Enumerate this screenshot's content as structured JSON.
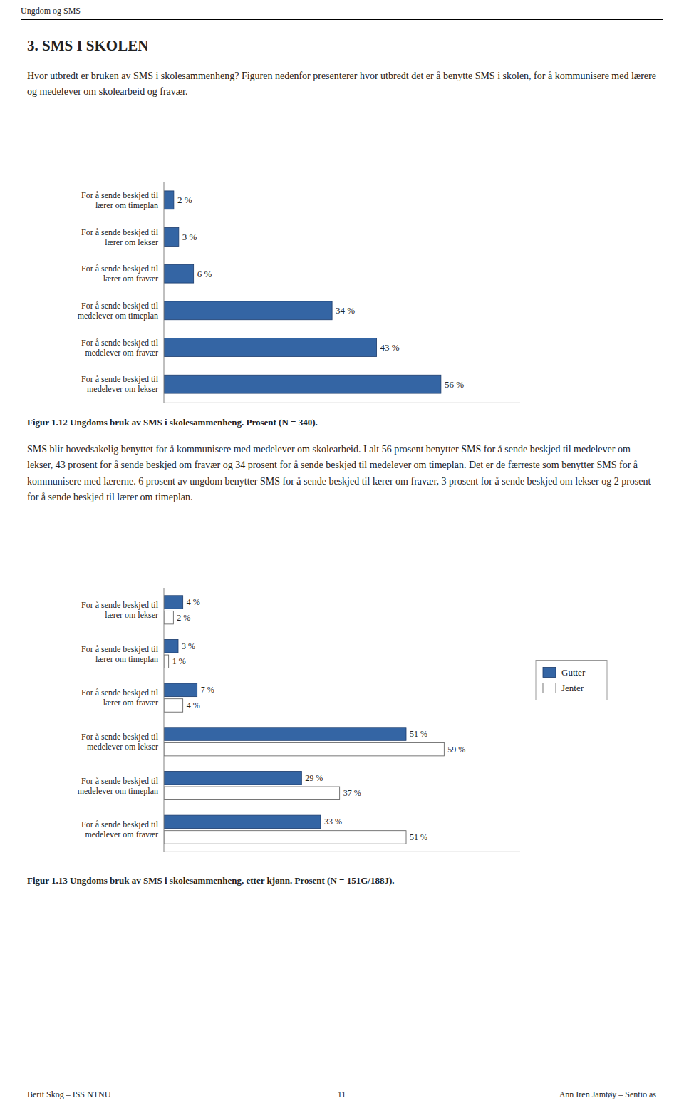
{
  "page_title": "Ungdom og SMS",
  "section_title": "3. SMS I SKOLEN",
  "section_text1": "Hvor utbredt er bruken av SMS i skolesammenheng? Figuren nedenfor presenterer hvor utbredt det er å benytte SMS i skolen, for å kommunisere med lærere og medelever om skolearbeid og fravær.",
  "section_text2": "SMS blir hovedsakelig benyttet for å kommunisere med medelever om skolearbeid. I alt 56 prosent benytter SMS for å sende beskjed til medelever om lekser, 43 prosent for å sende beskjed om fravær og 34 prosent for å sende beskjed til medelever om timeplan. Det er de færreste som benytter SMS for å kommunisere med lærerne. 6 prosent av ungdom benytter SMS for å sende beskjed til lærer om fravær, 3 prosent for å sende beskjed om lekser og 2 prosent for å sende beskjed til lærer om timeplan.",
  "footer_left": "Berit Skog – ISS NTNU",
  "footer_center": "11",
  "footer_right": "Ann Iren Jamtøy – Sentio as",
  "chart_data": [
    {
      "type": "bar",
      "orientation": "horizontal",
      "title": "Figur 1.12 Ungdoms bruk av SMS i skolesammenheng. Prosent (N = 340).",
      "categories": [
        "For å sende beskjed til\nmedelever om lekser",
        "For å sende beskjed til\nmedelever om fravær",
        "For å sende beskjed til\nmedelever om timeplan",
        "For å sende beskjed til\nlærer om fravær",
        "For å sende beskjed til\nlærer om lekser",
        "For å sende beskjed til\nlærer om timeplan"
      ],
      "values": [
        56,
        43,
        34,
        6,
        3,
        2
      ],
      "value_labels": [
        "56 %",
        "43 %",
        "34 %",
        "6 %",
        "3 %",
        "2 %"
      ],
      "color": "#3465a4",
      "xlim": [
        0,
        72
      ],
      "data_labels": true,
      "tick_labels": "y",
      "grid": false
    },
    {
      "type": "bar",
      "orientation": "horizontal",
      "title": "Figur 1.13 Ungdoms bruk av SMS i skolesammenheng, etter kjønn. Prosent (N = 151G/188J).",
      "categories": [
        "For å sende beskjed til\nmedelever om fravær",
        "For å sende beskjed til\nmedelever om timeplan",
        "For å sende beskjed til\nmedelever om lekser",
        "For å sende beskjed til\nlærer om fravær",
        "For å sende beskjed til\nlærer om timeplan",
        "For å sende beskjed til\nlærer om lekser"
      ],
      "series": [
        {
          "name": "Gutter",
          "color": "#3465a4",
          "values": [
            33,
            29,
            51,
            7,
            3,
            4
          ],
          "value_labels": [
            "33 %",
            "29 %",
            "51 %",
            "7 %",
            "3 %",
            "4 %"
          ]
        },
        {
          "name": "Jenter",
          "color": "#ffffff",
          "values": [
            51,
            37,
            59,
            4,
            1,
            2
          ],
          "value_labels": [
            "51 %",
            "37 %",
            "59 %",
            "4 %",
            "1 %",
            "2 %"
          ]
        }
      ],
      "xlim": [
        0,
        75
      ],
      "data_labels": true,
      "tick_labels": "y",
      "legend": "right",
      "grid": false
    }
  ]
}
